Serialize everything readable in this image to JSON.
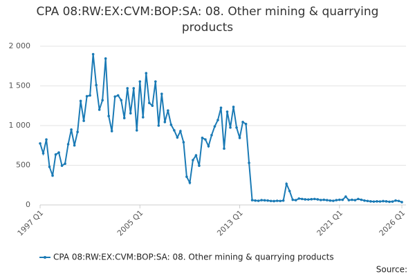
{
  "chart_data": {
    "type": "line",
    "title": "CPA 08:RW:EX:CVM:BOP:SA: 08. Other mining & quarrying products",
    "source": "Source:",
    "categories": [
      "1997 Q1",
      null,
      null,
      null,
      null,
      null,
      null,
      null,
      null,
      null,
      null,
      null,
      null,
      null,
      null,
      null,
      null,
      null,
      null,
      null,
      null,
      null,
      null,
      null,
      null,
      null,
      null,
      null,
      null,
      null,
      null,
      null,
      "2005 Q1",
      null,
      null,
      null,
      null,
      null,
      null,
      null,
      null,
      null,
      null,
      null,
      null,
      null,
      null,
      null,
      null,
      null,
      null,
      null,
      null,
      null,
      null,
      null,
      null,
      null,
      null,
      null,
      null,
      null,
      null,
      null,
      "2013 Q1",
      null,
      null,
      null,
      null,
      null,
      null,
      null,
      null,
      null,
      null,
      null,
      null,
      null,
      null,
      null,
      null,
      null,
      null,
      null,
      null,
      null,
      null,
      null,
      null,
      null,
      null,
      null,
      null,
      null,
      null,
      null,
      "2021 Q1",
      null,
      null,
      null,
      null,
      null,
      null,
      null,
      null,
      null,
      null,
      null,
      null,
      null,
      null,
      null,
      null,
      null,
      null,
      null,
      "2026 Q1"
    ],
    "series": [
      {
        "name": "CPA 08:RW:EX:CVM:BOP:SA: 08. Other mining & quarrying products",
        "color": "#1a7ab5",
        "values": [
          775,
          650,
          825,
          480,
          370,
          635,
          660,
          495,
          520,
          765,
          950,
          750,
          920,
          1310,
          1060,
          1370,
          1380,
          1900,
          1510,
          1200,
          1320,
          1845,
          1120,
          930,
          1365,
          1380,
          1320,
          1095,
          1470,
          1155,
          1470,
          940,
          1555,
          1105,
          1660,
          1285,
          1250,
          1555,
          1000,
          1400,
          1045,
          1190,
          1010,
          940,
          850,
          930,
          790,
          355,
          280,
          565,
          625,
          495,
          845,
          825,
          740,
          880,
          990,
          1070,
          1225,
          710,
          1175,
          975,
          1235,
          975,
          845,
          1045,
          1020,
          530,
          60,
          55,
          52,
          60,
          58,
          55,
          50,
          48,
          52,
          50,
          55,
          265,
          175,
          65,
          60,
          80,
          75,
          70,
          68,
          72,
          75,
          70,
          62,
          65,
          60,
          55,
          52,
          60,
          65,
          65,
          105,
          60,
          65,
          60,
          75,
          65,
          55,
          50,
          45,
          42,
          45,
          43,
          48,
          45,
          40,
          42,
          55,
          50,
          35
        ]
      }
    ],
    "ylim": [
      0,
      2000
    ],
    "yticks": [
      0,
      500,
      {
        "value": 1000,
        "label": "1 000"
      },
      {
        "value": 1500,
        "label": "1 500"
      },
      {
        "value": 2000,
        "label": "2 000"
      }
    ],
    "grid": true
  }
}
